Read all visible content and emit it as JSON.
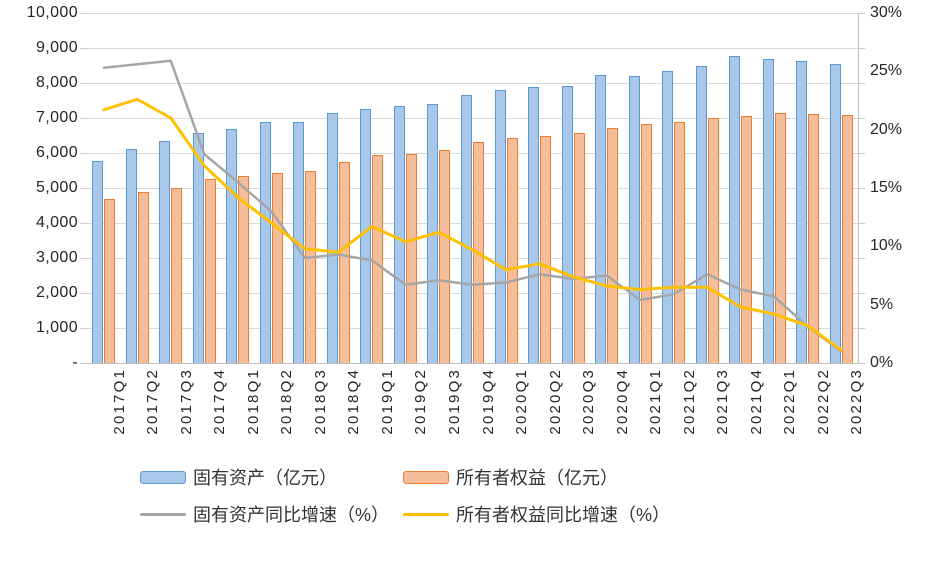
{
  "chart_data": {
    "type": "combo",
    "title": "",
    "categories": [
      "2017Q1",
      "2017Q2",
      "2017Q3",
      "2017Q4",
      "2018Q1",
      "2018Q2",
      "2018Q3",
      "2018Q4",
      "2019Q1",
      "2019Q2",
      "2019Q3",
      "2019Q4",
      "2020Q1",
      "2020Q2",
      "2020Q3",
      "2020Q4",
      "2021Q1",
      "2021Q2",
      "2021Q3",
      "2021Q4",
      "2022Q1",
      "2022Q2",
      "2022Q3"
    ],
    "series": [
      {
        "name": "固有资产（亿元）",
        "type": "bar",
        "axis": "left",
        "fill": "#a9c7e9",
        "border": "#5b9bd5",
        "values": [
          5770,
          6120,
          6340,
          6560,
          6700,
          6880,
          6880,
          7150,
          7250,
          7340,
          7400,
          7650,
          7790,
          7890,
          7920,
          8230,
          8200,
          8340,
          8490,
          8760,
          8690,
          8640,
          8550
        ]
      },
      {
        "name": "所有者权益（亿元）",
        "type": "bar",
        "axis": "left",
        "fill": "#f5be9b",
        "border": "#ed7d31",
        "values": [
          4700,
          4890,
          5000,
          5250,
          5330,
          5430,
          5490,
          5740,
          5950,
          5970,
          6100,
          6310,
          6440,
          6500,
          6580,
          6720,
          6830,
          6900,
          7000,
          7050,
          7140,
          7120,
          7080
        ]
      },
      {
        "name": "固有资产同比增速（%）",
        "type": "line",
        "axis": "right",
        "color": "#a6a6a6",
        "stroke_width": 2.5,
        "values": [
          25.3,
          25.6,
          25.9,
          17.9,
          15.5,
          13.0,
          9.0,
          9.3,
          8.8,
          6.7,
          7.1,
          6.7,
          6.9,
          7.6,
          7.2,
          7.5,
          5.4,
          5.9,
          7.6,
          6.3,
          5.7,
          3.1,
          1.0
        ]
      },
      {
        "name": "所有者权益同比增速（%）",
        "type": "line",
        "axis": "right",
        "color": "#ffc000",
        "stroke_width": 3,
        "values": [
          21.7,
          22.6,
          21.0,
          16.9,
          14.2,
          12.0,
          9.8,
          9.5,
          11.7,
          10.4,
          11.2,
          9.7,
          8.0,
          8.5,
          7.4,
          6.6,
          6.3,
          6.5,
          6.5,
          4.8,
          4.2,
          3.2,
          1.1
        ]
      }
    ],
    "left_axis": {
      "min": 0,
      "max": 10000,
      "step": 1000,
      "labels": [
        "-",
        "1,000",
        "2,000",
        "3,000",
        "4,000",
        "5,000",
        "6,000",
        "7,000",
        "8,000",
        "9,000",
        "10,000"
      ]
    },
    "right_axis": {
      "min": 0,
      "max": 30,
      "label_step": 5,
      "labels": [
        "0%",
        "5%",
        "10%",
        "15%",
        "20%",
        "25%",
        "30%"
      ]
    },
    "grid": true,
    "legend_position": "bottom"
  }
}
